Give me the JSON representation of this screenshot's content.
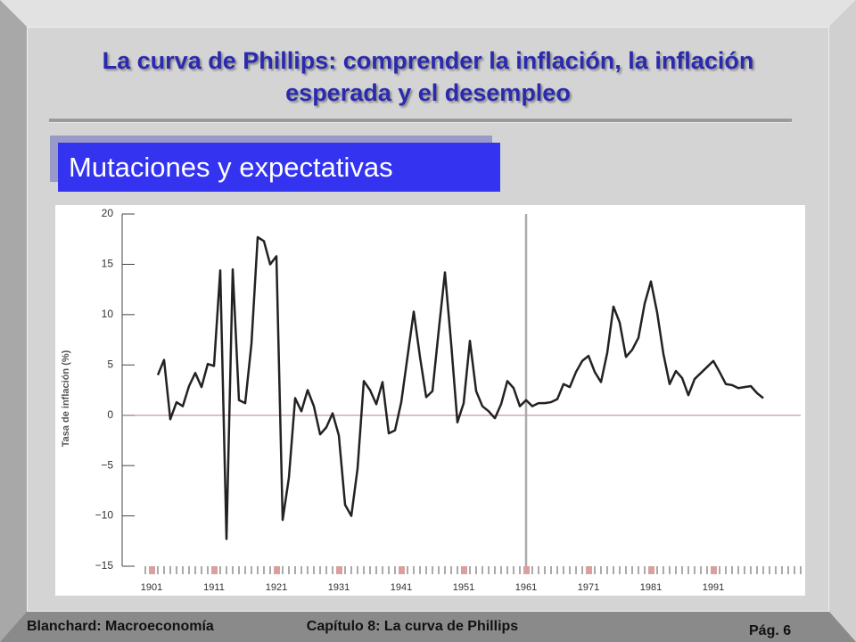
{
  "slide": {
    "title": "La curva de Phillips: comprender la inflación, la inflación esperada y el desempleo",
    "subtitle": "Mutaciones y expectativas",
    "footer_left": "Blanchard: Macroeconomía",
    "footer_center": "Capítulo 8: La curva de Phillips",
    "page": "Pág. 6"
  },
  "chart_data": {
    "type": "line",
    "y_label": "Tasa de inflación (%)",
    "x": [
      1902,
      1903,
      1904,
      1905,
      1906,
      1907,
      1908,
      1909,
      1910,
      1911,
      1912,
      1913,
      1914,
      1915,
      1916,
      1917,
      1918,
      1919,
      1920,
      1921,
      1922,
      1923,
      1924,
      1925,
      1926,
      1927,
      1928,
      1929,
      1930,
      1931,
      1932,
      1933,
      1934,
      1935,
      1936,
      1937,
      1938,
      1939,
      1940,
      1941,
      1942,
      1943,
      1944,
      1945,
      1946,
      1947,
      1948,
      1949,
      1950,
      1951,
      1952,
      1953,
      1954,
      1955,
      1956,
      1957,
      1958,
      1959,
      1960,
      1961,
      1962,
      1963,
      1964,
      1965,
      1966,
      1967,
      1968,
      1969,
      1970,
      1971,
      1972,
      1973,
      1974,
      1975,
      1976,
      1977,
      1978,
      1979,
      1980,
      1981,
      1982,
      1983,
      1984,
      1985,
      1986,
      1987,
      1988,
      1989,
      1990,
      1991,
      1992,
      1993,
      1994,
      1995,
      1996,
      1997,
      1998,
      1999
    ],
    "series": [
      {
        "name": "Tasa de inflación",
        "color": "#222222",
        "values": [
          4.0,
          5.5,
          -0.4,
          1.3,
          0.9,
          2.9,
          4.2,
          2.8,
          5.1,
          4.9,
          14.4,
          -12.3,
          14.5,
          1.5,
          1.2,
          7.1,
          17.7,
          17.3,
          15.0,
          15.8,
          -10.4,
          -6.2,
          1.7,
          0.4,
          2.5,
          0.9,
          -1.9,
          -1.2,
          0.2,
          -2.0,
          -8.9,
          -10.0,
          -5.3,
          3.4,
          2.5,
          1.1,
          3.3,
          -1.8,
          -1.5,
          1.3,
          5.8,
          10.3,
          5.8,
          1.8,
          2.4,
          8.4,
          14.2,
          7.1,
          -0.7,
          1.2,
          7.4,
          2.4,
          0.9,
          0.4,
          -0.3,
          1.1,
          3.4,
          2.7,
          0.9,
          1.5,
          0.9,
          1.2,
          1.2,
          1.3,
          1.6,
          3.1,
          2.8,
          4.3,
          5.4,
          5.9,
          4.3,
          3.3,
          6.2,
          10.8,
          9.2,
          5.8,
          6.5,
          7.7,
          11.1,
          13.3,
          10.2,
          6.1,
          3.1,
          4.4,
          3.7,
          2.0,
          3.6,
          4.2,
          4.8,
          5.4,
          4.3,
          3.1,
          3.0,
          2.7,
          2.8,
          2.9,
          2.2,
          1.7
        ]
      }
    ],
    "xlim": [
      1900,
      2005
    ],
    "xticks": [
      1901,
      1911,
      1921,
      1931,
      1941,
      1951,
      1961,
      1971,
      1981,
      1991
    ],
    "ylim": [
      -15,
      20
    ],
    "yticks": [
      {
        "value": -15,
        "label": "−15"
      },
      {
        "value": -10,
        "label": "−10"
      },
      {
        "value": -5,
        "label": "−5"
      },
      0,
      5,
      10,
      15,
      20
    ],
    "reference_line_x": 1961
  }
}
